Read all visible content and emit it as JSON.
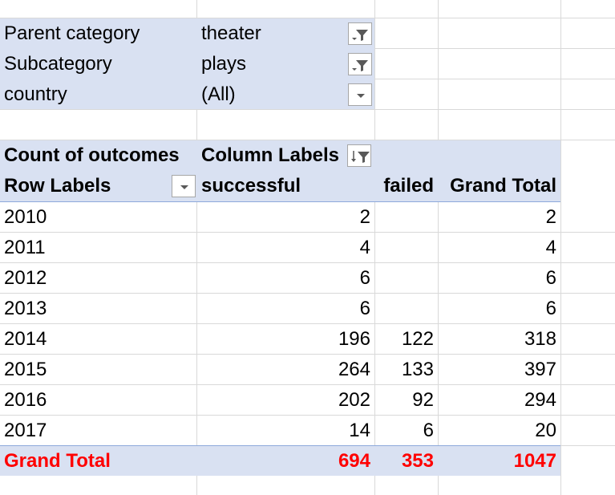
{
  "filters": [
    {
      "field": "Parent category",
      "value": "theater",
      "filtered": true
    },
    {
      "field": "Subcategory",
      "value": "plays",
      "filtered": true
    },
    {
      "field": "country",
      "value": "(All)",
      "filtered": false
    }
  ],
  "pivot": {
    "data_field": "Count of outcomes",
    "column_labels": "Column Labels",
    "row_labels": "Row Labels",
    "columns": [
      "successful",
      "failed",
      "Grand Total"
    ],
    "rows": [
      {
        "label": "2010",
        "successful": "2",
        "failed": "",
        "total": "2"
      },
      {
        "label": "2011",
        "successful": "4",
        "failed": "",
        "total": "4"
      },
      {
        "label": "2012",
        "successful": "6",
        "failed": "",
        "total": "6"
      },
      {
        "label": "2013",
        "successful": "6",
        "failed": "",
        "total": "6"
      },
      {
        "label": "2014",
        "successful": "196",
        "failed": "122",
        "total": "318"
      },
      {
        "label": "2015",
        "successful": "264",
        "failed": "133",
        "total": "397"
      },
      {
        "label": "2016",
        "successful": "202",
        "failed": "92",
        "total": "294"
      },
      {
        "label": "2017",
        "successful": "14",
        "failed": "6",
        "total": "20"
      }
    ],
    "grand_total": {
      "label": "Grand Total",
      "successful": "694",
      "failed": "353",
      "total": "1047"
    }
  },
  "colors": {
    "header_band": "#d9e1f2",
    "grand_total_text": "#ff0000",
    "gridline": "#d9d9d9"
  }
}
